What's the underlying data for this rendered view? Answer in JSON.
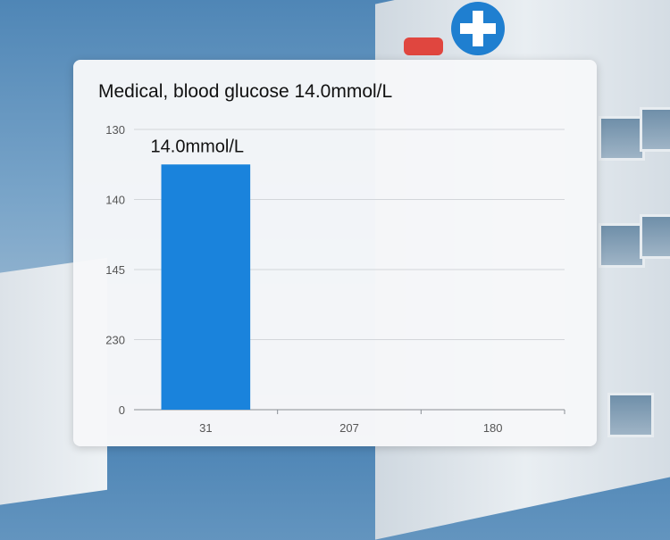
{
  "chart_data": {
    "type": "bar",
    "title": "Medical, blood glucose 14.0mmol/L",
    "categories": [
      "31",
      "207",
      "180"
    ],
    "values": [
      14.0,
      null,
      null
    ],
    "data_labels": [
      "14.0mmol/L",
      "",
      ""
    ],
    "y_tick_labels": [
      "130",
      "140",
      "145",
      "230",
      "0"
    ],
    "ylim": [
      0,
      16
    ],
    "grid": true,
    "legend": "none",
    "bar_color": "#1a83dc"
  }
}
